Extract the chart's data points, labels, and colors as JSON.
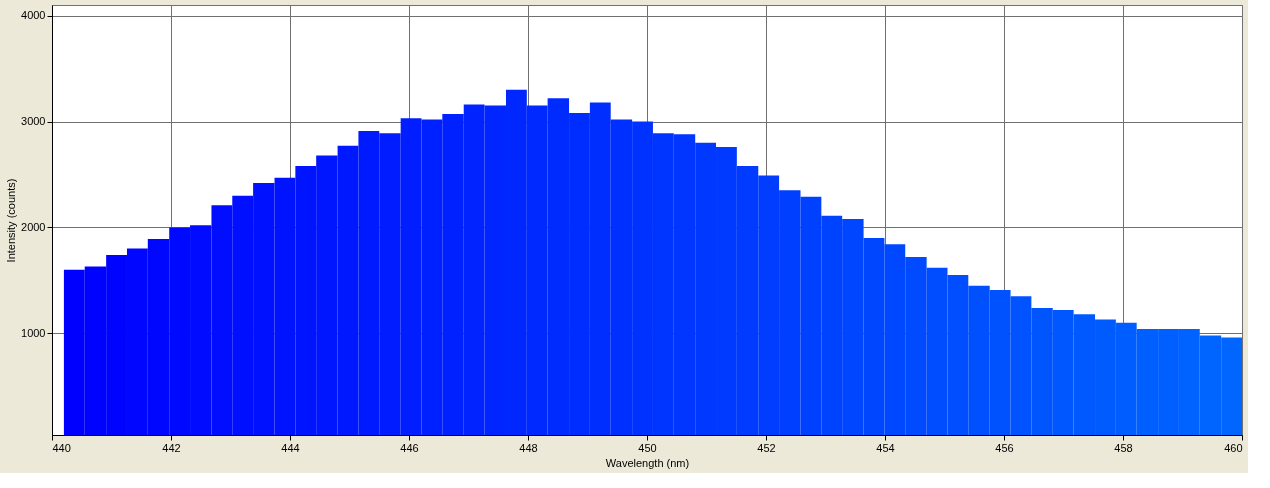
{
  "chart_data": {
    "type": "histogram",
    "xlabel": "Wavelength (nm)",
    "ylabel": "Intensity (counts)",
    "bins": [
      440.2,
      440.55,
      440.91,
      441.26,
      441.61,
      441.97,
      442.32,
      442.68,
      443.03,
      443.38,
      443.74,
      444.09,
      444.44,
      444.8,
      445.15,
      445.5,
      445.86,
      446.21,
      446.56,
      446.92,
      447.27,
      447.63,
      447.98,
      448.33,
      448.69,
      449.04,
      449.39,
      449.75,
      450.1,
      450.45,
      450.81,
      451.16,
      451.51,
      451.87,
      452.22,
      452.58,
      452.93,
      453.28,
      453.64,
      453.99,
      454.34,
      454.7,
      455.05,
      455.4,
      455.76,
      456.11,
      456.46,
      456.82,
      457.17,
      457.53,
      457.88,
      458.23,
      458.59,
      458.94,
      459.29,
      459.65,
      460.0
    ],
    "values": [
      1600,
      1630,
      1740,
      1800,
      1890,
      2000,
      2020,
      2210,
      2300,
      2420,
      2470,
      2580,
      2680,
      2770,
      2910,
      2890,
      3030,
      3020,
      3070,
      3160,
      3150,
      3300,
      3150,
      3220,
      3080,
      3180,
      3020,
      3000,
      2890,
      2880,
      2800,
      2760,
      2580,
      2490,
      2350,
      2290,
      2110,
      2080,
      1900,
      1840,
      1720,
      1620,
      1550,
      1450,
      1410,
      1350,
      1240,
      1220,
      1180,
      1130,
      1100,
      1040,
      1040,
      1040,
      980,
      960
    ],
    "colors": [
      "#0000ff",
      "#0002ff",
      "#0004ff",
      "#0006ff",
      "#0007ff",
      "#0009ff",
      "#000bff",
      "#000dff",
      "#000fff",
      "#0011ff",
      "#0013ff",
      "#0014ff",
      "#0016ff",
      "#0018ff",
      "#001aff",
      "#001cff",
      "#001eff",
      "#0020ff",
      "#0021ff",
      "#0023ff",
      "#0025ff",
      "#0027ff",
      "#0029ff",
      "#002bff",
      "#002dff",
      "#002eff",
      "#0030ff",
      "#0032ff",
      "#0034ff",
      "#0036ff",
      "#0038ff",
      "#0039ff",
      "#003bff",
      "#003dff",
      "#003fff",
      "#0041ff",
      "#0043ff",
      "#0045ff",
      "#0046ff",
      "#0048ff",
      "#004aff",
      "#004cff",
      "#004eff",
      "#0050ff",
      "#0052ff",
      "#0053ff",
      "#0055ff",
      "#0057ff",
      "#0059ff",
      "#005bff",
      "#005dff",
      "#005fff",
      "#0060ff",
      "#0062ff",
      "#0064ff",
      "#0066ff"
    ],
    "xlim": [
      440,
      460
    ],
    "xticks": [
      440,
      442,
      444,
      446,
      448,
      450,
      452,
      454,
      456,
      458,
      460
    ],
    "ylim": [
      40,
      4100
    ],
    "yticks": [
      1000,
      2000,
      3000,
      4000
    ],
    "grid": true
  }
}
